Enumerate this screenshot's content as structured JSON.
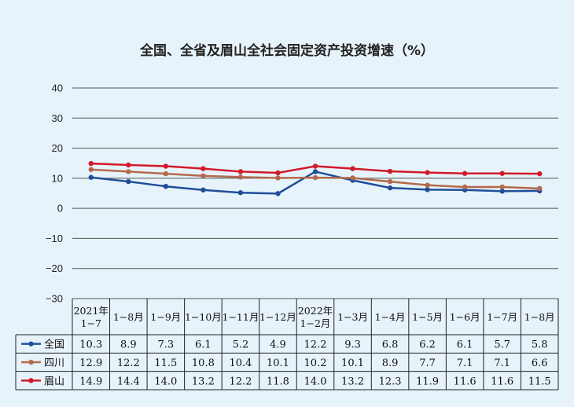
{
  "chart_data": {
    "type": "line",
    "title": "全国、全省及眉山全社会固定资产投资增速（%）",
    "xlabel": "",
    "ylabel": "",
    "ylim": [
      -30,
      40
    ],
    "yticks": [
      "40",
      "30",
      "20",
      "10",
      "0",
      "−10",
      "−20",
      "−30"
    ],
    "grid": true,
    "legend": "table-left",
    "categories": [
      [
        "2021年",
        "1−7"
      ],
      [
        "1−8月"
      ],
      [
        "1−9月"
      ],
      [
        "1−10月"
      ],
      [
        "1−11月"
      ],
      [
        "1−12月"
      ],
      [
        "2022年",
        "1−2月"
      ],
      [
        "1−3月"
      ],
      [
        "1−4月"
      ],
      [
        "1−5月"
      ],
      [
        "1−6月"
      ],
      [
        "1−7月"
      ],
      [
        "1−8月"
      ]
    ],
    "series": [
      {
        "name": "全国",
        "color": "#1f4e9a",
        "values": [
          10.3,
          8.9,
          7.3,
          6.1,
          5.2,
          4.9,
          12.2,
          9.3,
          6.8,
          6.2,
          6.1,
          5.7,
          5.8
        ]
      },
      {
        "name": "四川",
        "color": "#b26a4c",
        "values": [
          12.9,
          12.2,
          11.5,
          10.8,
          10.4,
          10.1,
          10.2,
          10.1,
          8.9,
          7.7,
          7.1,
          7.1,
          6.6
        ]
      },
      {
        "name": "眉山",
        "color": "#d11a2a",
        "values": [
          14.9,
          14.4,
          14.0,
          13.2,
          12.2,
          11.8,
          14.0,
          13.2,
          12.3,
          11.9,
          11.6,
          11.6,
          11.5
        ]
      }
    ]
  }
}
